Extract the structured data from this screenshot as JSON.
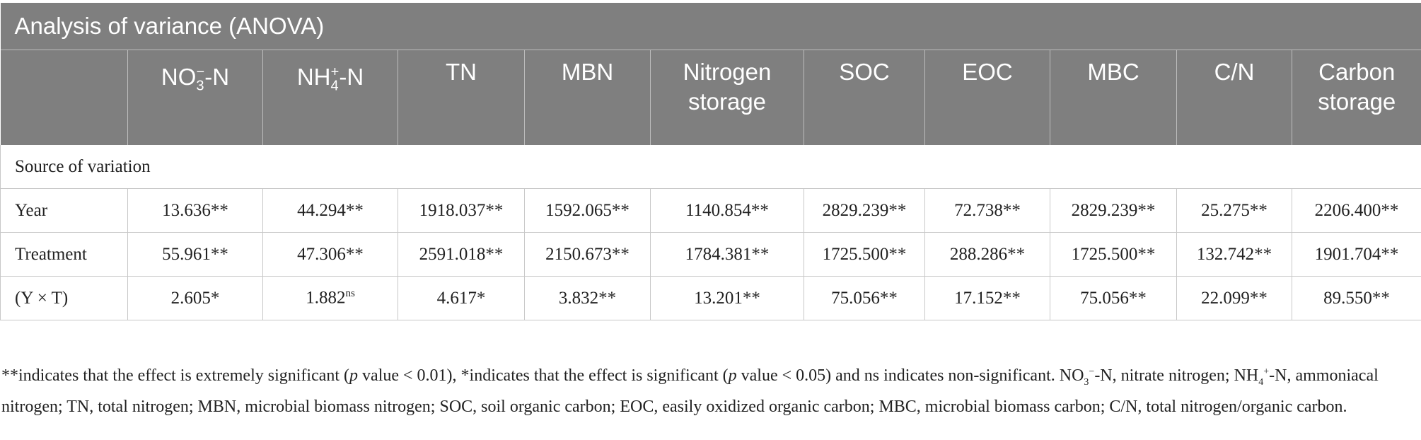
{
  "table": {
    "title": "Analysis of variance (ANOVA)",
    "headers": [
      "",
      {
        "base": "NO",
        "sub": "3",
        "sup": "−",
        "tail": "-N"
      },
      {
        "base": "NH",
        "sub": "4",
        "sup": "+",
        "tail": "-N"
      },
      "TN",
      "MBN",
      "Nitrogen storage",
      "SOC",
      "EOC",
      "MBC",
      "C/N",
      "Carbon storage"
    ],
    "section_label": "Source of variation",
    "rows": [
      {
        "label": "Year",
        "cells": [
          "13.636**",
          "44.294**",
          "1918.037**",
          "1592.065**",
          "1140.854**",
          "2829.239**",
          "72.738**",
          "2829.239**",
          "25.275**",
          "2206.400**"
        ]
      },
      {
        "label": "Treatment",
        "cells": [
          "55.961**",
          "47.306**",
          "2591.018**",
          "2150.673**",
          "1784.381**",
          "1725.500**",
          "288.286**",
          "1725.500**",
          "132.742**",
          "1901.704**"
        ]
      },
      {
        "label": "(Y × T)",
        "cells": [
          "2.605*",
          {
            "text": "1.882",
            "sup": "ns"
          },
          "4.617*",
          "3.832**",
          "13.201**",
          "75.056**",
          "17.152**",
          "75.056**",
          "22.099**",
          "89.550**"
        ]
      }
    ]
  },
  "footnote": {
    "p1": "**indicates that the effect is extremely significant (",
    "p1_italic": "p",
    "p2": " value < 0.01), *indicates that the effect is significant (",
    "p2_italic": "p",
    "p3": " value < 0.05) and ns indicates non-significant. NO",
    "no3_sub": "3",
    "no3_sup": "−",
    "p4": "-N, nitrate nitrogen; NH",
    "nh4_sub": "4",
    "nh4_sup": "+",
    "p5": "-N, ammoniacal nitrogen; TN, total nitrogen; MBN, microbial biomass nitrogen; SOC, soil organic carbon; EOC, easily oxidized organic carbon; MBC, microbial biomass carbon; C/N, total nitrogen/organic carbon."
  }
}
